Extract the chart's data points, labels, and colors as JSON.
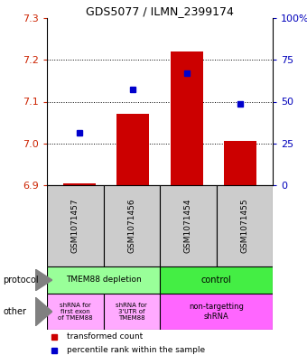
{
  "title": "GDS5077 / ILMN_2399174",
  "samples": [
    "GSM1071457",
    "GSM1071456",
    "GSM1071454",
    "GSM1071455"
  ],
  "bar_values": [
    6.905,
    7.07,
    7.22,
    7.005
  ],
  "percentile_values": [
    7.025,
    7.13,
    7.168,
    7.095
  ],
  "ylim": [
    6.9,
    7.3
  ],
  "yticks_left": [
    6.9,
    7.0,
    7.1,
    7.2,
    7.3
  ],
  "yticks_right": [
    0,
    25,
    50,
    75,
    100
  ],
  "ytick_labels_right": [
    "0",
    "25",
    "50",
    "75",
    "100%"
  ],
  "bar_color": "#cc0000",
  "dot_color": "#0000cc",
  "left_tick_color": "#cc2200",
  "right_tick_color": "#0000bb",
  "protocol_labels": [
    "TMEM88 depletion",
    "control"
  ],
  "protocol_colors": [
    "#99ff99",
    "#44ee44"
  ],
  "other_labels_0": "shRNA for\nfirst exon\nof TMEM88",
  "other_labels_1": "shRNA for\n3'UTR of\nTMEM88",
  "other_labels_2": "non-targetting\nshRNA",
  "other_color_left": "#ffaaff",
  "other_color_right": "#ff66ff",
  "legend_red": "transformed count",
  "legend_blue": "percentile rank within the sample"
}
